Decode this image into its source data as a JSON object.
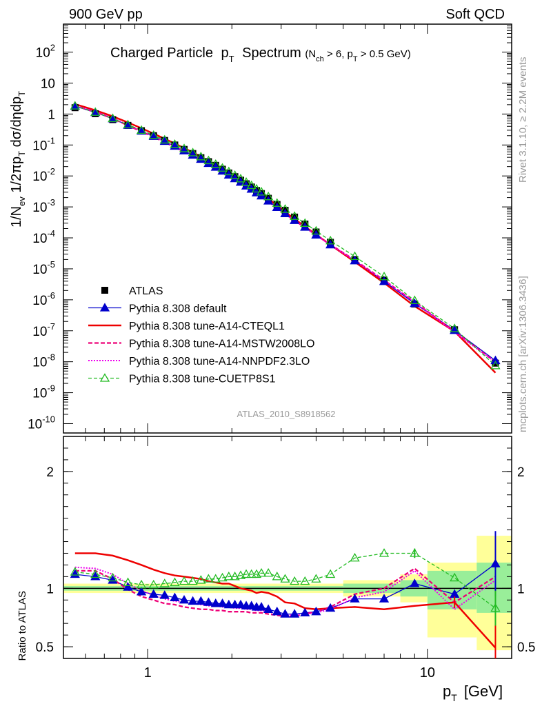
{
  "header": {
    "left": "900 GeV pp",
    "right": "Soft QCD"
  },
  "side": {
    "rivet": "Rivet 3.1.10, ≥ 2.2M events",
    "site": "mcplots.cern.ch [arXiv:1306.3436]"
  },
  "colors": {
    "atlas": "#000000",
    "default": "#0000cc",
    "cteql1": "#ee0000",
    "mstw": "#ee0077",
    "nnpdf": "#ee00ee",
    "cuetp8s1": "#22bb22",
    "band_yellow": "#ffff99",
    "band_green": "#99ee99"
  },
  "chart_data": {
    "type": "line",
    "title": "Charged Particle",
    "title_pt": "p",
    "title_pt_sub": "T",
    "title_spectrum": "Spectrum",
    "title_cut": "(N",
    "title_cut_sub1": "ch",
    "title_cut_mid": " > 6, p",
    "title_cut_sub2": "T",
    "title_cut_end": " > 0.5 GeV)",
    "analysis_label": "ATLAS_2010_S8918562",
    "xlabel": "p",
    "xlabel_sub": "T",
    "xlabel_unit": "[GeV]",
    "ylabel_top": "1/N",
    "ylabel_top_sub": "ev",
    "ylabel_top_rest": " 1/2πp",
    "ylabel_top_sub2": "T",
    "ylabel_top_end": " dσ/dηdp",
    "ylabel_top_sub3": "T",
    "ylabel_ratio": "Ratio to ATLAS",
    "xscale": "log",
    "xlim": [
      0.5,
      20
    ],
    "top_ylim": [
      5e-11,
      800
    ],
    "top_yscale": "log",
    "ratio_ylim": [
      0.4,
      2.3
    ],
    "x_major_ticks": [
      "1",
      "10"
    ],
    "top_y_ticks": [
      "10^2",
      "10",
      "1",
      "10^-1",
      "10^-2",
      "10^-3",
      "10^-4",
      "10^-5",
      "10^-6",
      "10^-7",
      "10^-8",
      "10^-9",
      "10^-10"
    ],
    "ratio_y_ticks": [
      "2",
      "1",
      "0.5"
    ],
    "legend_position": "lower-left",
    "x": [
      0.55,
      0.65,
      0.75,
      0.85,
      0.95,
      1.05,
      1.15,
      1.25,
      1.35,
      1.45,
      1.55,
      1.65,
      1.75,
      1.85,
      1.95,
      2.05,
      2.15,
      2.25,
      2.35,
      2.45,
      2.55,
      2.7,
      2.9,
      3.1,
      3.35,
      3.65,
      4.0,
      4.5,
      5.5,
      7.0,
      9.0,
      12.5,
      17.5
    ],
    "atlas": [
      1.6,
      1.02,
      0.66,
      0.43,
      0.29,
      0.2,
      0.14,
      0.1,
      0.072,
      0.053,
      0.039,
      0.029,
      0.022,
      0.0165,
      0.0125,
      0.0095,
      0.0073,
      0.0056,
      0.0044,
      0.0034,
      0.0027,
      0.0019,
      0.0012,
      0.00078,
      0.00047,
      0.00028,
      0.000155,
      7.2e-05,
      2e-05,
      4.3e-06,
      7.3e-07,
      1.08e-07,
      9e-09
    ],
    "series": [
      {
        "name": "Pythia 8.308 default",
        "ratio": [
          1.12,
          1.1,
          1.07,
          1.01,
          0.97,
          0.95,
          0.94,
          0.92,
          0.9,
          0.89,
          0.89,
          0.88,
          0.87,
          0.87,
          0.86,
          0.86,
          0.86,
          0.85,
          0.85,
          0.84,
          0.84,
          0.82,
          0.8,
          0.78,
          0.78,
          0.79,
          0.8,
          0.83,
          0.91,
          0.91,
          1.04,
          0.95,
          1.21
        ]
      },
      {
        "name": "Pythia 8.308 tune-A14-CTEQL1",
        "ratio": [
          1.3,
          1.3,
          1.28,
          1.24,
          1.2,
          1.16,
          1.13,
          1.11,
          1.1,
          1.09,
          1.08,
          1.06,
          1.05,
          1.04,
          1.04,
          1.02,
          1.0,
          0.99,
          0.98,
          0.96,
          0.97,
          0.96,
          0.93,
          0.88,
          0.87,
          0.83,
          0.82,
          0.83,
          0.84,
          0.82,
          0.85,
          0.88,
          0.49
        ]
      },
      {
        "name": "Pythia 8.308 tune-A14-MSTW2008LO",
        "ratio": [
          1.15,
          1.15,
          1.08,
          0.99,
          0.93,
          0.9,
          0.87,
          0.86,
          0.84,
          0.83,
          0.82,
          0.82,
          0.81,
          0.81,
          0.8,
          0.8,
          0.8,
          0.8,
          0.79,
          0.79,
          0.79,
          0.78,
          0.77,
          0.76,
          0.76,
          0.78,
          0.8,
          0.84,
          0.95,
          1.0,
          1.17,
          0.88,
          1.1
        ]
      },
      {
        "name": "Pythia 8.308 tune-A14-NNPDF2.3LO",
        "ratio": [
          1.18,
          1.17,
          1.12,
          1.04,
          0.98,
          0.94,
          0.91,
          0.89,
          0.88,
          0.87,
          0.86,
          0.85,
          0.85,
          0.84,
          0.84,
          0.83,
          0.83,
          0.82,
          0.82,
          0.81,
          0.81,
          0.8,
          0.78,
          0.77,
          0.77,
          0.78,
          0.79,
          0.82,
          0.92,
          0.97,
          1.15,
          0.82,
          1.07
        ]
      },
      {
        "name": "Pythia 8.308 tune-CUETP8S1",
        "ratio": [
          1.14,
          1.12,
          1.09,
          1.05,
          1.03,
          1.03,
          1.04,
          1.05,
          1.06,
          1.06,
          1.07,
          1.08,
          1.08,
          1.09,
          1.1,
          1.1,
          1.11,
          1.12,
          1.12,
          1.12,
          1.13,
          1.13,
          1.1,
          1.08,
          1.06,
          1.06,
          1.08,
          1.12,
          1.26,
          1.3,
          1.3,
          1.09,
          0.83
        ]
      }
    ],
    "legend_atlas": "ATLAS",
    "bands": [
      {
        "x0": 0.5,
        "x1": 5.0,
        "yellow": [
          0.96,
          1.04
        ],
        "green": [
          0.98,
          1.02
        ]
      },
      {
        "x0": 5.0,
        "x1": 8.0,
        "yellow": [
          0.93,
          1.07
        ],
        "green": [
          0.96,
          1.04
        ]
      },
      {
        "x0": 8.0,
        "x1": 10.0,
        "yellow": [
          0.88,
          1.12
        ],
        "green": [
          0.93,
          1.07
        ]
      },
      {
        "x0": 10.0,
        "x1": 15.0,
        "yellow": [
          0.58,
          1.22
        ],
        "green": [
          0.82,
          1.15
        ]
      },
      {
        "x0": 15.0,
        "x1": 20.0,
        "yellow": [
          0.47,
          1.45
        ],
        "green": [
          0.79,
          1.22
        ]
      }
    ]
  }
}
